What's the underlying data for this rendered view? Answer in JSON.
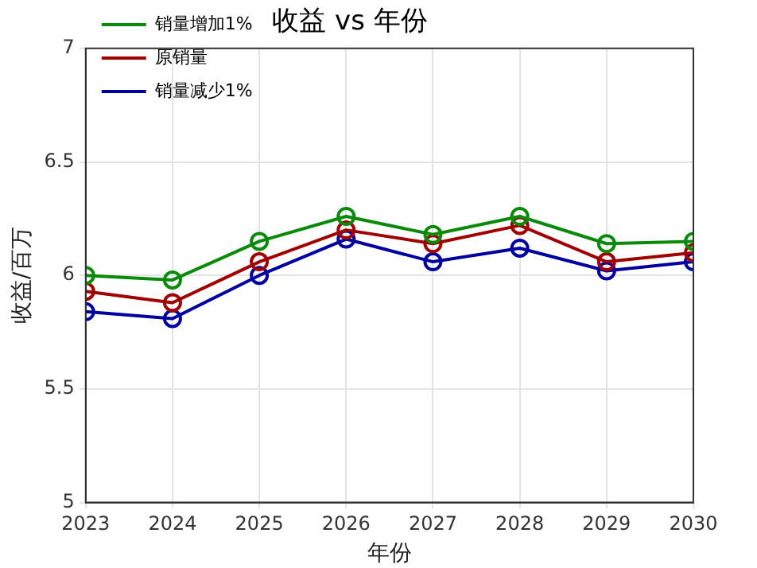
{
  "chart_data": {
    "type": "line",
    "title": "收益 vs 年份",
    "xlabel": "年份",
    "ylabel": "收益/百万",
    "x": [
      2023,
      2024,
      2025,
      2026,
      2027,
      2028,
      2029,
      2030
    ],
    "xlim": [
      2023,
      2030
    ],
    "xticks": [
      2023,
      2024,
      2025,
      2026,
      2027,
      2028,
      2029,
      2030
    ],
    "ylim": [
      5,
      7
    ],
    "yticks": [
      5,
      5.5,
      6,
      6.5,
      7
    ],
    "grid": true,
    "legend": "top left",
    "marker": "circle",
    "line_style": "solid",
    "series": [
      {
        "name": "销量增加1%",
        "color": "#0a8a0a",
        "values": [
          6.0,
          5.98,
          6.15,
          6.26,
          6.18,
          6.26,
          6.14,
          6.15
        ]
      },
      {
        "name": "原销量",
        "color": "#a00000",
        "values": [
          5.93,
          5.88,
          6.06,
          6.2,
          6.14,
          6.22,
          6.06,
          6.1
        ]
      },
      {
        "name": "销量减少1%",
        "color": "#0000a0",
        "values": [
          5.84,
          5.81,
          6.0,
          6.16,
          6.06,
          6.12,
          6.02,
          6.06
        ]
      }
    ]
  }
}
